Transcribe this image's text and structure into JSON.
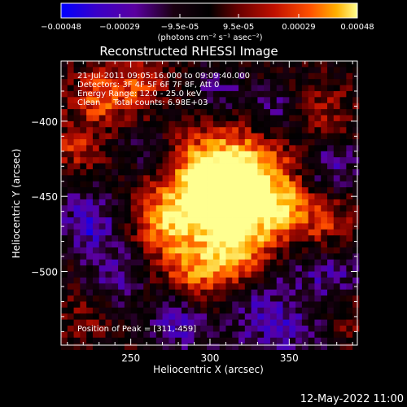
{
  "colorbar": {
    "ticks": [
      "-0.00048",
      "-0.00029",
      "-9.5e-05",
      "9.5e-05",
      "0.00029",
      "0.00048"
    ],
    "tick_values": [
      -0.00048,
      -0.00029,
      -9.5e-05,
      9.5e-05,
      0.00029,
      0.00048
    ],
    "range": [
      -0.00048,
      0.00048
    ],
    "units_label": "(photons cm⁻² s⁻¹ asec⁻²)",
    "colormap": [
      "#0000ff",
      "#3a00c8",
      "#5a00a0",
      "#1a0010",
      "#000000",
      "#6a0000",
      "#c01000",
      "#ff5000",
      "#ffb000",
      "#ffff90"
    ]
  },
  "title": "Reconstructed RHESSI Image",
  "annotations": {
    "time": "21-Jul-2011 09:05:16.000 to 09:09:40.000",
    "detectors": "Detectors: 3F 4F 5F 6F 7F 8F, Att 0",
    "energy": "Energy Range: 12.0 - 25.0 keV",
    "clean": "Clean     Total counts: 6.98E+03",
    "peak": "Position of Peak = [311,-459]"
  },
  "footer_date": "12-May-2022 11:00",
  "chart_data": {
    "type": "heatmap",
    "title": "Reconstructed RHESSI Image",
    "xlabel": "Heliocentric X (arcsec)",
    "ylabel": "Heliocentric Y (arcsec)",
    "xlim": [
      206,
      393
    ],
    "ylim": [
      -549,
      -360
    ],
    "x_ticks": [
      250,
      300,
      350
    ],
    "y_ticks": [
      -400,
      -450,
      -500
    ],
    "peak": {
      "x": 311,
      "y": -459
    },
    "color_range": [
      -0.00048,
      0.00048
    ],
    "grid": false,
    "bright_sources": [
      {
        "x": 311,
        "y": -459,
        "value": 0.00048
      },
      {
        "x": 297,
        "y": -440,
        "value": 0.00037
      },
      {
        "x": 325,
        "y": -435,
        "value": 0.00033
      },
      {
        "x": 270,
        "y": -468,
        "value": 0.0003
      },
      {
        "x": 320,
        "y": -490,
        "value": 0.00028
      },
      {
        "x": 350,
        "y": -460,
        "value": 0.00025
      },
      {
        "x": 230,
        "y": -385,
        "value": 0.00028
      },
      {
        "x": 255,
        "y": -375,
        "value": 0.00024
      },
      {
        "x": 300,
        "y": -505,
        "value": 0.00022
      },
      {
        "x": 283,
        "y": -495,
        "value": 0.0002
      },
      {
        "x": 215,
        "y": -420,
        "value": 0.00022
      },
      {
        "x": 378,
        "y": -470,
        "value": 0.00019
      },
      {
        "x": 372,
        "y": -395,
        "value": 0.00017
      },
      {
        "x": 385,
        "y": -530,
        "value": 0.00016
      },
      {
        "x": 350,
        "y": -520,
        "value": 0.00015
      },
      {
        "x": 220,
        "y": -528,
        "value": 0.00012
      }
    ],
    "dim_regions": [
      {
        "x": 225,
        "y": -470,
        "value": -0.00028
      },
      {
        "x": 240,
        "y": -505,
        "value": -0.00022
      },
      {
        "x": 345,
        "y": -525,
        "value": -0.00035
      },
      {
        "x": 375,
        "y": -430,
        "value": -0.00022
      },
      {
        "x": 340,
        "y": -395,
        "value": -0.0002
      },
      {
        "x": 260,
        "y": -420,
        "value": -0.00015
      },
      {
        "x": 280,
        "y": -535,
        "value": -0.00024
      },
      {
        "x": 380,
        "y": -500,
        "value": -0.00018
      },
      {
        "x": 212,
        "y": -445,
        "value": -0.00012
      },
      {
        "x": 305,
        "y": -380,
        "value": -0.00016
      }
    ]
  }
}
